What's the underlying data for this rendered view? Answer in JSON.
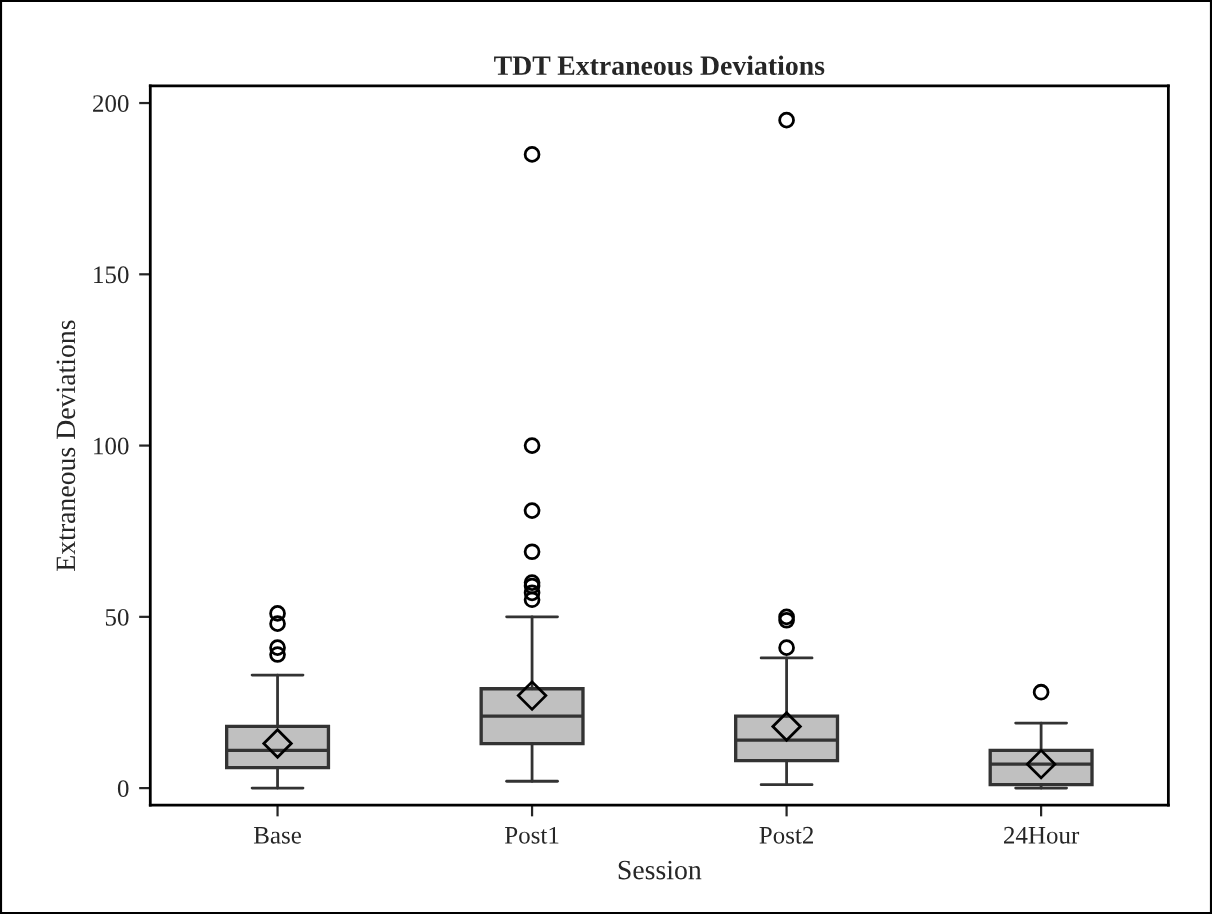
{
  "chart_data": {
    "type": "box",
    "title": "TDT Extraneous Deviations",
    "xlabel": "Session",
    "ylabel": "Extraneous Deviations",
    "categories": [
      "Base",
      "Post1",
      "Post2",
      "24Hour"
    ],
    "series": [
      {
        "color": "#c0c0c0",
        "boxes": [
          {
            "low": 0,
            "q1": 6,
            "median": 11,
            "q3": 18,
            "high": 33,
            "mean": 13,
            "outliers": [
              39,
              41,
              48,
              51
            ]
          },
          {
            "low": 2,
            "q1": 13,
            "median": 21,
            "q3": 29,
            "high": 50,
            "mean": 27,
            "outliers": [
              55,
              57,
              59,
              60,
              69,
              81,
              100,
              185
            ]
          },
          {
            "low": 1,
            "q1": 8,
            "median": 14,
            "q3": 21,
            "high": 38,
            "mean": 18,
            "outliers": [
              41,
              49,
              50,
              195
            ]
          },
          {
            "low": 0,
            "q1": 1,
            "median": 7,
            "q3": 11,
            "high": 19,
            "mean": 7,
            "outliers": [
              28
            ]
          }
        ]
      }
    ],
    "ylim": [
      -5,
      205
    ],
    "yticks": [
      0,
      50,
      100,
      150,
      200
    ],
    "grid": false,
    "legend": false
  }
}
